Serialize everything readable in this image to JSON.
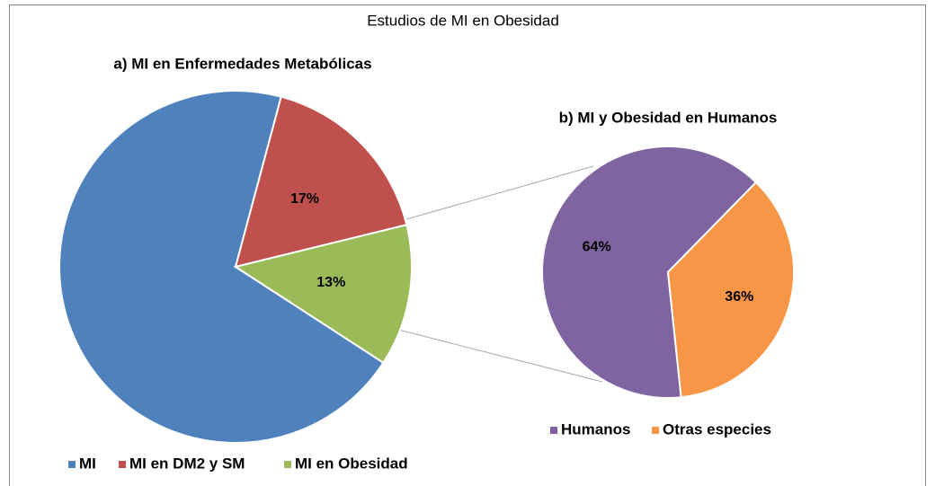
{
  "title": "Estudios de MI en Obesidad",
  "chart_data": [
    {
      "type": "pie",
      "title": "a) MI en Enfermedades Metabólicas",
      "categories": [
        "MI",
        "MI en DM2 y SM",
        "MI en Obesidad"
      ],
      "values": [
        70,
        17,
        13
      ],
      "value_labels": [
        null,
        "17%",
        "13%"
      ],
      "colors": [
        "#4f81bd",
        "#c0504d",
        "#9bbb59"
      ]
    },
    {
      "type": "pie",
      "title": "b) MI y Obesidad en Humanos",
      "categories": [
        "Humanos",
        "Otras especies"
      ],
      "values": [
        64,
        36
      ],
      "value_labels": [
        "64%",
        "36%"
      ],
      "colors": [
        "#8064a2",
        "#f79646"
      ]
    }
  ]
}
